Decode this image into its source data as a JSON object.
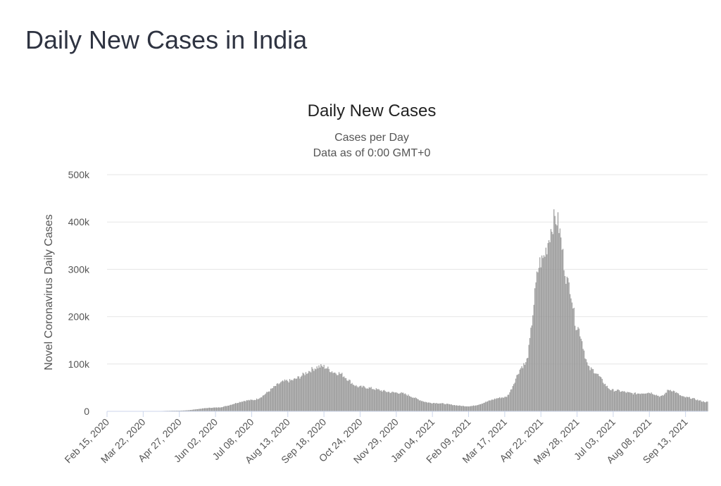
{
  "page": {
    "title": "Daily New Cases in India"
  },
  "chart_data": {
    "type": "bar",
    "title": "Daily New Cases",
    "subtitle": "Cases per Day",
    "subtitle2": "Data as of 0:00 GMT+0",
    "ylabel": "Novel Coronavirus Daily Cases",
    "xlabel": "",
    "ylim": [
      0,
      500000
    ],
    "y_ticks": [
      {
        "value": 0,
        "label": "0"
      },
      {
        "value": 100000,
        "label": "100k"
      },
      {
        "value": 200000,
        "label": "200k"
      },
      {
        "value": 300000,
        "label": "300k"
      },
      {
        "value": 400000,
        "label": "400k"
      },
      {
        "value": 500000,
        "label": "500k"
      }
    ],
    "x_range": [
      "2020-02-15",
      "2021-10-05"
    ],
    "x_ticks": [
      "Feb 15, 2020",
      "Mar 22, 2020",
      "Apr 27, 2020",
      "Jun 02, 2020",
      "Jul 08, 2020",
      "Aug 13, 2020",
      "Sep 18, 2020",
      "Oct 24, 2020",
      "Nov 29, 2020",
      "Jan 04, 2021",
      "Feb 09, 2021",
      "Mar 17, 2021",
      "Apr 22, 2021",
      "May 28, 2021",
      "Jul 03, 2021",
      "Aug 08, 2021",
      "Sep 13, 2021"
    ],
    "grid": true,
    "bar_color": "#999999",
    "trend_points": [
      {
        "date": "2020-02-15",
        "value": 0
      },
      {
        "date": "2020-03-22",
        "value": 100
      },
      {
        "date": "2020-04-27",
        "value": 1500
      },
      {
        "date": "2020-06-02",
        "value": 8000
      },
      {
        "date": "2020-07-08",
        "value": 24000
      },
      {
        "date": "2020-08-13",
        "value": 65000
      },
      {
        "date": "2020-09-16",
        "value": 96000
      },
      {
        "date": "2020-10-01",
        "value": 82000
      },
      {
        "date": "2020-10-24",
        "value": 52000
      },
      {
        "date": "2020-11-29",
        "value": 40000
      },
      {
        "date": "2021-01-04",
        "value": 18000
      },
      {
        "date": "2021-02-09",
        "value": 11000
      },
      {
        "date": "2021-03-17",
        "value": 30000
      },
      {
        "date": "2021-04-06",
        "value": 100000
      },
      {
        "date": "2021-04-22",
        "value": 320000
      },
      {
        "date": "2021-05-07",
        "value": 412000
      },
      {
        "date": "2021-05-20",
        "value": 270000
      },
      {
        "date": "2021-05-28",
        "value": 180000
      },
      {
        "date": "2021-06-10",
        "value": 90000
      },
      {
        "date": "2021-07-03",
        "value": 45000
      },
      {
        "date": "2021-07-25",
        "value": 38000
      },
      {
        "date": "2021-08-08",
        "value": 40000
      },
      {
        "date": "2021-08-20",
        "value": 32000
      },
      {
        "date": "2021-08-28",
        "value": 46000
      },
      {
        "date": "2021-09-13",
        "value": 30000
      },
      {
        "date": "2021-10-05",
        "value": 20000
      }
    ]
  }
}
